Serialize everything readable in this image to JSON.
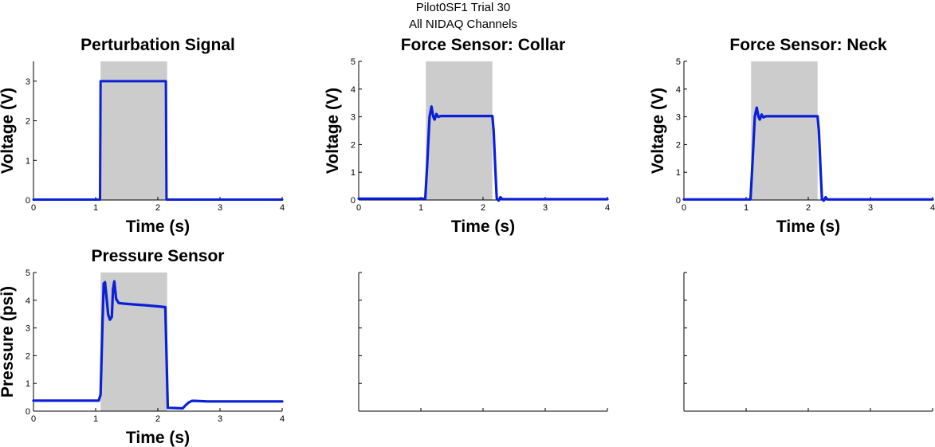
{
  "figure": {
    "title_line1": "Pilot0SF1 Trial 30",
    "title_line2": "All NIDAQ Channels"
  },
  "colors": {
    "trace": "#0a1fd8",
    "shade": "#cccccc",
    "axis": "#000000"
  },
  "chart_data": [
    {
      "type": "line",
      "title": "Perturbation Signal",
      "xlabel": "Time (s)",
      "ylabel": "Voltage (V)",
      "xlim": [
        0,
        4
      ],
      "ylim": [
        0,
        3.5
      ],
      "xticks": [
        "0",
        "1",
        "2",
        "3",
        "4"
      ],
      "yticks": [
        "0",
        "1",
        "2",
        "3"
      ],
      "shaded_region": [
        1.08,
        2.15
      ],
      "series": [
        {
          "x": [
            0,
            1.07,
            1.08,
            2.13,
            2.14,
            4
          ],
          "y": [
            0.01,
            0.01,
            3.0,
            3.0,
            0.01,
            0.01
          ]
        }
      ]
    },
    {
      "type": "line",
      "title": "Force Sensor: Collar",
      "xlabel": "Time (s)",
      "ylabel": "Voltage (V)",
      "xlim": [
        0,
        4
      ],
      "ylim": [
        0,
        5
      ],
      "xticks": [
        "0",
        "1",
        "2",
        "3",
        "4"
      ],
      "yticks": [
        "0",
        "1",
        "2",
        "3",
        "4",
        "5"
      ],
      "shaded_region": [
        1.08,
        2.15
      ],
      "series": [
        {
          "x": [
            0,
            1.07,
            1.1,
            1.14,
            1.17,
            1.2,
            1.22,
            1.25,
            1.28,
            1.32,
            1.4,
            2.15,
            2.17,
            2.2,
            2.22,
            2.25,
            2.28,
            2.31,
            2.4,
            4
          ],
          "y": [
            0.05,
            0.05,
            1.2,
            3.0,
            3.37,
            3.0,
            2.9,
            3.1,
            3.0,
            3.03,
            3.03,
            3.03,
            2.5,
            1.0,
            0.05,
            -0.02,
            0.1,
            0.03,
            0.03,
            0.03
          ]
        }
      ]
    },
    {
      "type": "line",
      "title": "Force Sensor: Neck",
      "xlabel": "Time (s)",
      "ylabel": "Voltage (V)",
      "xlim": [
        0,
        4
      ],
      "ylim": [
        0,
        5
      ],
      "xticks": [
        "0",
        "1",
        "2",
        "3",
        "4"
      ],
      "yticks": [
        "0",
        "1",
        "2",
        "3",
        "4",
        "5"
      ],
      "shaded_region": [
        1.08,
        2.15
      ],
      "series": [
        {
          "x": [
            0,
            1.07,
            1.1,
            1.14,
            1.17,
            1.2,
            1.22,
            1.25,
            1.28,
            1.32,
            1.4,
            2.15,
            2.17,
            2.2,
            2.22,
            2.25,
            2.28,
            2.31,
            2.4,
            4
          ],
          "y": [
            0.02,
            0.02,
            1.2,
            3.0,
            3.33,
            3.0,
            2.9,
            3.08,
            2.98,
            3.02,
            3.02,
            3.02,
            2.5,
            1.0,
            0.02,
            -0.02,
            0.1,
            0.02,
            0.02,
            0.02
          ]
        }
      ]
    },
    {
      "type": "line",
      "title": "Pressure Sensor",
      "xlabel": "Time (s)",
      "ylabel": "Pressure (psi)",
      "xlim": [
        0,
        4
      ],
      "ylim": [
        0,
        5
      ],
      "xticks": [
        "0",
        "1",
        "2",
        "3",
        "4"
      ],
      "yticks": [
        "0",
        "1",
        "2",
        "3",
        "4",
        "5"
      ],
      "shaded_region": [
        1.08,
        2.15
      ],
      "series": [
        {
          "x": [
            0,
            1.05,
            1.08,
            1.11,
            1.13,
            1.15,
            1.18,
            1.2,
            1.23,
            1.26,
            1.28,
            1.3,
            1.33,
            1.37,
            1.45,
            1.6,
            1.8,
            2.0,
            2.12,
            2.14,
            2.16,
            2.4,
            2.45,
            2.5,
            2.55,
            2.6,
            2.8,
            3.2,
            4
          ],
          "y": [
            0.38,
            0.38,
            0.6,
            3.2,
            4.6,
            4.65,
            4.0,
            3.5,
            3.3,
            3.4,
            4.4,
            4.68,
            4.05,
            3.9,
            3.88,
            3.85,
            3.82,
            3.78,
            3.75,
            2.0,
            0.12,
            0.1,
            0.22,
            0.32,
            0.37,
            0.37,
            0.35,
            0.35,
            0.35
          ]
        }
      ]
    },
    {
      "type": "line",
      "title": "",
      "xlim": [
        0,
        4
      ],
      "ylim": [
        0,
        5
      ],
      "series": []
    },
    {
      "type": "line",
      "title": "",
      "xlim": [
        0,
        4
      ],
      "ylim": [
        0,
        5
      ],
      "series": []
    }
  ]
}
